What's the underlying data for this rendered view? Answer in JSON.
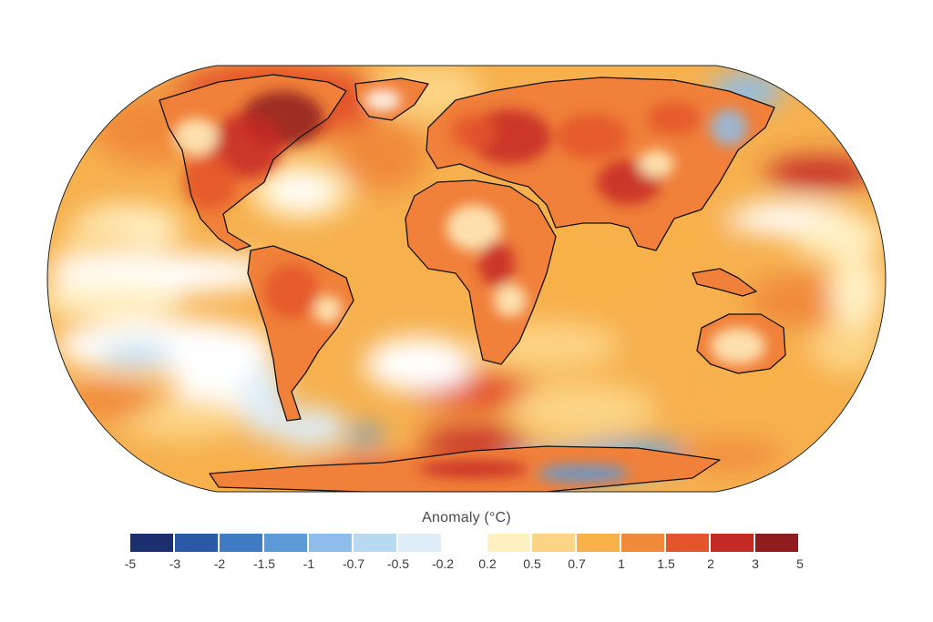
{
  "map": {
    "projection": "robinson",
    "variable": "temperature-anomaly",
    "colors": {
      "ocean_base": "#f6b04e",
      "land_base": "#f0803a",
      "coastline": "#111111",
      "outline": "#222222"
    }
  },
  "legend": {
    "title": "Anomaly (°C)",
    "ticks": [
      "-5",
      "-3",
      "-2",
      "-1.5",
      "-1",
      "-0.7",
      "-0.5",
      "-0.2",
      "0.2",
      "0.5",
      "0.7",
      "1",
      "1.5",
      "2",
      "3",
      "5"
    ],
    "colors": [
      "#1b2f6e",
      "#2a5aa7",
      "#3f7cc4",
      "#5b9ad6",
      "#8dbde8",
      "#b9d9f1",
      "#deedf8",
      "#ffffff",
      "#fff0c2",
      "#fcd485",
      "#f8b048",
      "#f08a3b",
      "#e4552b",
      "#c52a25",
      "#8f1d1f"
    ]
  }
}
